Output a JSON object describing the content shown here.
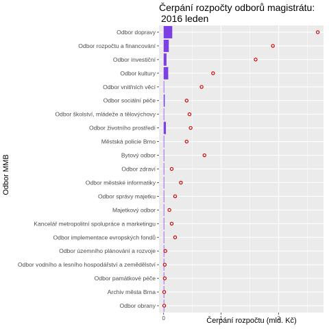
{
  "chart_data": {
    "type": "bar",
    "title": "Čerpání rozpočty odborů magistrátu:",
    "subtitle": "2016 leden",
    "xlabel": "Čerpání rozpočtu (mld. Kč)",
    "ylabel": "Odbor MMB",
    "orientation": "horizontal",
    "xlim": [
      -0.08,
      2.78
    ],
    "x_ticks": [
      0,
      1,
      2
    ],
    "grid": true,
    "legend": "none",
    "categories": [
      "Odbor dopravy",
      "Odbor rozpočtu a financování",
      "Odbor investiční",
      "Odbor kultury",
      "Odbor vnitřních věcí",
      "Odbor sociální péče",
      "Odbor školství, mládeže a tělovýchovy",
      "Odbor životního prostředí",
      "Městská policie Brno",
      "Bytový odbor",
      "Odbor zdraví",
      "Odbor městské informatiky",
      "Odbor správy majetku",
      "Majetkový odbor",
      "Kancelář metropolitní spolupráce a marketingu",
      "Odbor implementace evropských fondů",
      "Odbor územního plánování a rozvoje",
      "Odbor vodního a lesního hospodářství a zemědělství",
      "Odbor památkové péče",
      "Archiv města Brna",
      "Odbor obrany"
    ],
    "series": [
      {
        "values": [
          0.15,
          0.09,
          0.05,
          0.08,
          0.005,
          0.02,
          0.005,
          0.04,
          0.005,
          0.01,
          0.01,
          0.01,
          0.01,
          0.005,
          0.01,
          0.005,
          0.003,
          0.003,
          0.003,
          0.002,
          0.002
        ]
      },
      {
        "values": [
          2.68,
          1.9,
          1.6,
          0.86,
          0.66,
          0.4,
          0.45,
          0.47,
          0.4,
          0.71,
          0.14,
          0.3,
          0.2,
          0.1,
          0.14,
          0.2,
          0.03,
          0.02,
          0.02,
          0.01,
          0.01
        ]
      }
    ],
    "colors": {
      "bar": "#7b3fe4",
      "point_stroke": "#cc0000",
      "panel": "#ebebeb",
      "grid": "#ffffff"
    }
  }
}
